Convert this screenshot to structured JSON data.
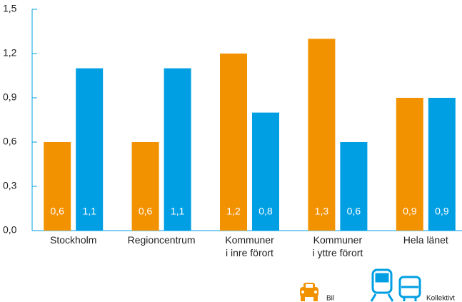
{
  "chart_data": {
    "type": "bar",
    "categories": [
      [
        "Stockholm"
      ],
      [
        "Regioncentrum"
      ],
      [
        "Kommuner",
        "i inre förort"
      ],
      [
        "Kommuner",
        "i yttre förort"
      ],
      [
        "Hela länet"
      ]
    ],
    "series": [
      {
        "name": "Bil",
        "color": "#f39200",
        "values": [
          0.6,
          0.6,
          1.2,
          1.3,
          0.9
        ],
        "value_labels": [
          "0,6",
          "0,6",
          "1,2",
          "1,3",
          "0,9"
        ]
      },
      {
        "name": "Kollektivt",
        "color": "#009fe3",
        "values": [
          1.1,
          1.1,
          0.8,
          0.6,
          0.9
        ],
        "value_labels": [
          "1,1",
          "1,1",
          "0,8",
          "0,6",
          "0,9"
        ]
      }
    ],
    "ylim": [
      0,
      1.5
    ],
    "yticks": [
      {
        "value": 0,
        "label": "0,0"
      },
      {
        "value": 0.3,
        "label": "0,3"
      },
      {
        "value": 0.6,
        "label": "0,6"
      },
      {
        "value": 0.9,
        "label": "0,9"
      },
      {
        "value": 1.2,
        "label": "1,2"
      },
      {
        "value": 1.5,
        "label": "1,5"
      }
    ]
  }
}
